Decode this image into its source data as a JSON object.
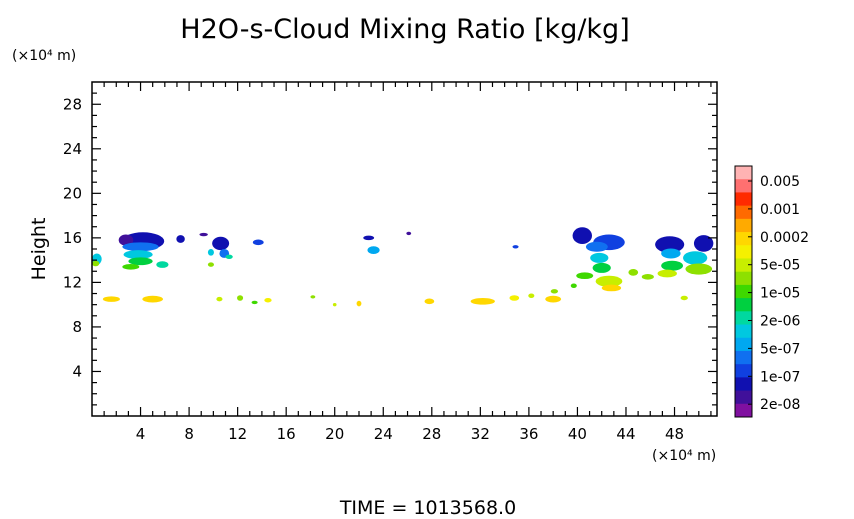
{
  "chart_data": {
    "type": "heatmap",
    "title": "H2O-s-Cloud Mixing Ratio [kg/kg]",
    "ylabel": "Height",
    "y_unit": "(×10⁴ m)",
    "x_unit": "(×10⁴ m)",
    "xlim": [
      0,
      51.5
    ],
    "ylim": [
      0,
      30
    ],
    "x_ticks": [
      4,
      8,
      12,
      16,
      20,
      24,
      28,
      32,
      36,
      40,
      44,
      48
    ],
    "y_ticks": [
      4,
      8,
      12,
      16,
      20,
      24,
      28
    ],
    "colorbar": {
      "labels": [
        "0.005",
        "0.001",
        "0.0002",
        "5e-05",
        "1e-05",
        "2e-06",
        "5e-07",
        "1e-07",
        "2e-08"
      ],
      "colors": [
        "#ffb3b3",
        "#ff7070",
        "#ff2a00",
        "#ff6a00",
        "#ffaa00",
        "#ffd700",
        "#f5f000",
        "#c8ee00",
        "#8ee000",
        "#3ed800",
        "#00d040",
        "#00d8a0",
        "#00c8e0",
        "#00a8f0",
        "#1070f0",
        "#1040e0",
        "#1010b0",
        "#40109a",
        "#8010a0"
      ]
    },
    "footer": "TIME = 1013568.0",
    "grid": false,
    "clouds": [
      {
        "x": 4.2,
        "y": 15.7,
        "w": 3.5,
        "h": 1.6,
        "c": "#1010b0"
      },
      {
        "x": 2.8,
        "y": 15.8,
        "w": 1.2,
        "h": 1.0,
        "c": "#40109a"
      },
      {
        "x": 4.0,
        "y": 15.2,
        "w": 3.0,
        "h": 0.8,
        "c": "#1070f0"
      },
      {
        "x": 3.8,
        "y": 14.5,
        "w": 2.4,
        "h": 0.8,
        "c": "#00c8e0"
      },
      {
        "x": 4.0,
        "y": 13.9,
        "w": 2.0,
        "h": 0.7,
        "c": "#00d040"
      },
      {
        "x": 3.2,
        "y": 13.4,
        "w": 1.4,
        "h": 0.5,
        "c": "#3ed800"
      },
      {
        "x": 5.8,
        "y": 13.6,
        "w": 1.0,
        "h": 0.6,
        "c": "#00d8a0"
      },
      {
        "x": 0.4,
        "y": 14.1,
        "w": 0.8,
        "h": 1.0,
        "c": "#00c8e0"
      },
      {
        "x": 0.3,
        "y": 13.7,
        "w": 0.6,
        "h": 0.5,
        "c": "#8ee000"
      },
      {
        "x": 7.3,
        "y": 15.9,
        "w": 0.7,
        "h": 0.7,
        "c": "#1010b0"
      },
      {
        "x": 9.2,
        "y": 16.3,
        "w": 0.7,
        "h": 0.3,
        "c": "#40109a"
      },
      {
        "x": 10.6,
        "y": 15.5,
        "w": 1.4,
        "h": 1.2,
        "c": "#1010b0"
      },
      {
        "x": 10.9,
        "y": 14.6,
        "w": 0.8,
        "h": 0.8,
        "c": "#1070f0"
      },
      {
        "x": 9.8,
        "y": 14.7,
        "w": 0.5,
        "h": 0.6,
        "c": "#00c8e0"
      },
      {
        "x": 9.8,
        "y": 13.6,
        "w": 0.5,
        "h": 0.4,
        "c": "#8ee000"
      },
      {
        "x": 11.3,
        "y": 14.3,
        "w": 0.6,
        "h": 0.4,
        "c": "#00d8a0"
      },
      {
        "x": 13.7,
        "y": 15.6,
        "w": 0.9,
        "h": 0.5,
        "c": "#1040e0"
      },
      {
        "x": 22.8,
        "y": 16.0,
        "w": 0.9,
        "h": 0.4,
        "c": "#1010b0"
      },
      {
        "x": 23.2,
        "y": 14.9,
        "w": 1.0,
        "h": 0.7,
        "c": "#00a8f0"
      },
      {
        "x": 26.1,
        "y": 16.4,
        "w": 0.4,
        "h": 0.3,
        "c": "#40109a"
      },
      {
        "x": 34.9,
        "y": 15.2,
        "w": 0.5,
        "h": 0.3,
        "c": "#1040e0"
      },
      {
        "x": 1.6,
        "y": 10.5,
        "w": 1.4,
        "h": 0.5,
        "c": "#ffd700"
      },
      {
        "x": 5.0,
        "y": 10.5,
        "w": 1.7,
        "h": 0.6,
        "c": "#ffd700"
      },
      {
        "x": 10.5,
        "y": 10.5,
        "w": 0.5,
        "h": 0.4,
        "c": "#c8ee00"
      },
      {
        "x": 12.2,
        "y": 10.6,
        "w": 0.5,
        "h": 0.5,
        "c": "#8ee000"
      },
      {
        "x": 13.4,
        "y": 10.2,
        "w": 0.5,
        "h": 0.3,
        "c": "#3ed800"
      },
      {
        "x": 14.5,
        "y": 10.4,
        "w": 0.6,
        "h": 0.4,
        "c": "#f5f000"
      },
      {
        "x": 18.2,
        "y": 10.7,
        "w": 0.4,
        "h": 0.3,
        "c": "#8ee000"
      },
      {
        "x": 20.0,
        "y": 10.0,
        "w": 0.3,
        "h": 0.3,
        "c": "#c8ee00"
      },
      {
        "x": 22.0,
        "y": 10.1,
        "w": 0.4,
        "h": 0.5,
        "c": "#ffd700"
      },
      {
        "x": 27.8,
        "y": 10.3,
        "w": 0.8,
        "h": 0.5,
        "c": "#ffd700"
      },
      {
        "x": 32.2,
        "y": 10.3,
        "w": 2.0,
        "h": 0.6,
        "c": "#ffd700"
      },
      {
        "x": 34.8,
        "y": 10.6,
        "w": 0.8,
        "h": 0.5,
        "c": "#f5f000"
      },
      {
        "x": 36.2,
        "y": 10.8,
        "w": 0.5,
        "h": 0.4,
        "c": "#c8ee00"
      },
      {
        "x": 38.0,
        "y": 10.5,
        "w": 1.3,
        "h": 0.6,
        "c": "#ffd700"
      },
      {
        "x": 38.1,
        "y": 11.2,
        "w": 0.6,
        "h": 0.4,
        "c": "#8ee000"
      },
      {
        "x": 39.7,
        "y": 11.7,
        "w": 0.5,
        "h": 0.4,
        "c": "#3ed800"
      },
      {
        "x": 40.4,
        "y": 16.2,
        "w": 1.6,
        "h": 1.5,
        "c": "#1010b0"
      },
      {
        "x": 42.6,
        "y": 15.6,
        "w": 2.6,
        "h": 1.4,
        "c": "#1040e0"
      },
      {
        "x": 41.6,
        "y": 15.2,
        "w": 1.8,
        "h": 0.9,
        "c": "#1070f0"
      },
      {
        "x": 41.8,
        "y": 14.2,
        "w": 1.5,
        "h": 0.9,
        "c": "#00c8e0"
      },
      {
        "x": 42.0,
        "y": 13.3,
        "w": 1.5,
        "h": 0.9,
        "c": "#00d040"
      },
      {
        "x": 42.6,
        "y": 12.1,
        "w": 2.2,
        "h": 1.0,
        "c": "#c8ee00"
      },
      {
        "x": 42.8,
        "y": 11.5,
        "w": 1.6,
        "h": 0.6,
        "c": "#ffd700"
      },
      {
        "x": 40.6,
        "y": 12.6,
        "w": 1.4,
        "h": 0.6,
        "c": "#3ed800"
      },
      {
        "x": 44.6,
        "y": 12.9,
        "w": 0.8,
        "h": 0.6,
        "c": "#8ee000"
      },
      {
        "x": 47.6,
        "y": 15.4,
        "w": 2.4,
        "h": 1.5,
        "c": "#1010b0"
      },
      {
        "x": 50.4,
        "y": 15.5,
        "w": 1.6,
        "h": 1.5,
        "c": "#1010b0"
      },
      {
        "x": 47.7,
        "y": 14.6,
        "w": 1.6,
        "h": 0.9,
        "c": "#00a8f0"
      },
      {
        "x": 49.7,
        "y": 14.2,
        "w": 2.0,
        "h": 1.2,
        "c": "#00c8e0"
      },
      {
        "x": 47.8,
        "y": 13.5,
        "w": 1.8,
        "h": 0.9,
        "c": "#00d040"
      },
      {
        "x": 50.0,
        "y": 13.2,
        "w": 2.2,
        "h": 1.0,
        "c": "#8ee000"
      },
      {
        "x": 47.4,
        "y": 12.8,
        "w": 1.6,
        "h": 0.7,
        "c": "#c8ee00"
      },
      {
        "x": 45.8,
        "y": 12.5,
        "w": 1.0,
        "h": 0.5,
        "c": "#8ee000"
      },
      {
        "x": 48.8,
        "y": 10.6,
        "w": 0.6,
        "h": 0.4,
        "c": "#c8ee00"
      }
    ]
  }
}
